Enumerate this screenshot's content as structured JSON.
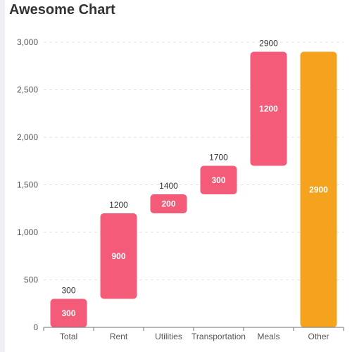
{
  "title": "Awesome Chart",
  "chart_data": {
    "type": "bar",
    "subtype": "waterfall",
    "categories": [
      "Total",
      "Rent",
      "Utilities",
      "Transportation",
      "Meals",
      "Other"
    ],
    "base": [
      0,
      300,
      1200,
      1400,
      1700,
      0
    ],
    "values": [
      300,
      900,
      200,
      300,
      1200,
      2900
    ],
    "cumulative_labels": [
      "300",
      "1200",
      "1400",
      "1700",
      "2900",
      ""
    ],
    "value_labels": [
      "300",
      "900",
      "200",
      "300",
      "1200",
      "2900"
    ],
    "y_ticks": [
      "0",
      "500",
      "1,000",
      "1,500",
      "2,000",
      "2,500",
      "3,000"
    ],
    "ylim": [
      0,
      3000
    ],
    "grid": true,
    "colors": {
      "increase": "#f45b78",
      "total": "#f5a31f"
    },
    "bar_kinds": [
      "increase",
      "increase",
      "increase",
      "increase",
      "increase",
      "total"
    ]
  }
}
